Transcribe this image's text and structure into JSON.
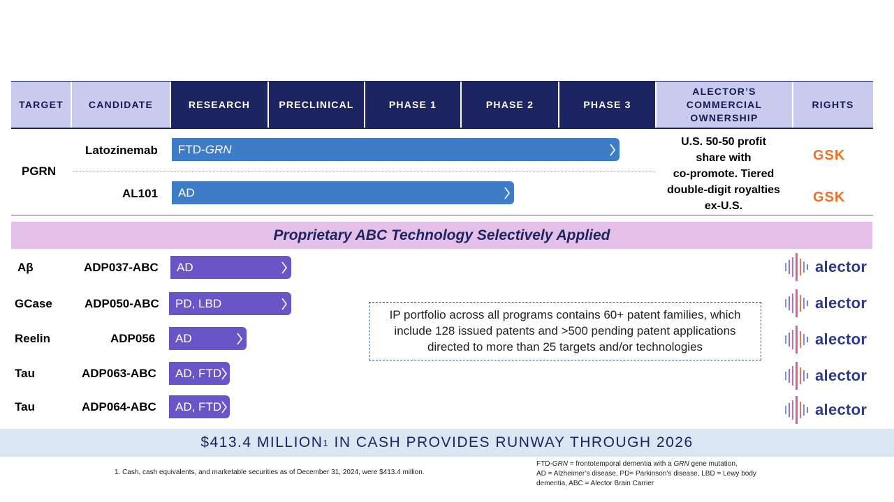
{
  "header": {
    "target": "TARGET",
    "candidate": "CANDIDATE",
    "research": "RESEARCH",
    "preclinical": "PRECLINICAL",
    "phase1": "PHASE 1",
    "phase2": "PHASE 2",
    "phase3": "PHASE 3",
    "ownership_line1": "ALECTOR’S",
    "ownership_line2": "COMMERCIAL",
    "ownership_line3": "OWNERSHIP",
    "rights": "RIGHTS"
  },
  "pgrn": {
    "target": "PGRN",
    "rows": [
      {
        "candidate": "Latozinemab",
        "indication_prefix": "FTD-",
        "indication_italic": "GRN",
        "rights": "GSK"
      },
      {
        "candidate": "AL101",
        "indication_prefix": "AD",
        "indication_italic": "",
        "rights": "GSK"
      }
    ],
    "ownership_lines": [
      "U.S. 50-50 profit",
      "share with",
      "co-promote. Tiered",
      "double-digit royalties",
      "ex-U.S."
    ]
  },
  "banner": "Proprietary ABC Technology Selectively Applied",
  "abc_programs": [
    {
      "target": "Aβ",
      "candidate": "ADP037-ABC",
      "indication": "AD",
      "rights": "alector"
    },
    {
      "target": "GCase",
      "candidate": "ADP050-ABC",
      "indication": "PD, LBD",
      "rights": "alector"
    },
    {
      "target": "Reelin",
      "candidate": "ADP056",
      "indication": "AD",
      "rights": "alector"
    },
    {
      "target": "Tau",
      "candidate": "ADP063-ABC",
      "indication": "AD, FTD",
      "rights": "alector"
    },
    {
      "target": "Tau",
      "candidate": "ADP064-ABC",
      "indication": "AD, FTD",
      "rights": "alector"
    }
  ],
  "ip_box": {
    "line1": "IP portfolio across all programs contains 60+ patent families, which",
    "line2": "include 128 issued patents and >500 pending patent applications",
    "line3": "directed to more than 25 targets and/or technologies"
  },
  "cash": {
    "text_before": "$413.4 MILLION",
    "superscript": "1",
    "text_after": " IN CASH PROVIDES RUNWAY THROUGH 2026"
  },
  "footnotes": {
    "note1": "1. Cash, cash equivalents, and marketable securities as of December 31, 2024, were $413.4 million.",
    "abbr_prefix": "FTD-",
    "abbr_grn": "GRN",
    "abbr_mid": " = frontotemporal dementia with a ",
    "abbr_grn2": "GRN",
    "abbr_line1_end": " gene mutation,",
    "abbr_line2": "AD = Alzheimer’s disease, PD= Parkinson’s disease, LBD = Lewy body",
    "abbr_line3": "dementia, ABC = Alector Brain Carrier"
  },
  "colors": {
    "navy": "#1c2562",
    "lavender": "#c9cbee",
    "blue_bar": "#3e7cc8",
    "purple_bar": "#6a55c8",
    "banner": "#e4c0e8",
    "gsk": "#f37021"
  }
}
